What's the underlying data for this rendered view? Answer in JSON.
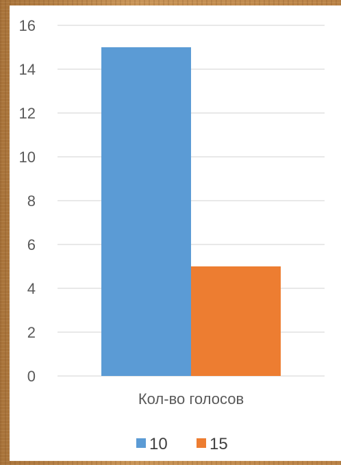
{
  "chart_data": {
    "type": "bar",
    "categories": [
      "Кол-во голосов"
    ],
    "series": [
      {
        "name": "10",
        "values": [
          15
        ],
        "color": "#5b9bd5"
      },
      {
        "name": "15",
        "values": [
          5
        ],
        "color": "#ed7d31"
      }
    ],
    "title": "",
    "xlabel": "",
    "ylabel": "",
    "ylim": [
      0,
      16
    ],
    "yticks": [
      "0",
      "2",
      "4",
      "6",
      "8",
      "10",
      "12",
      "14",
      "16"
    ],
    "grid": true,
    "legend_position": "bottom"
  }
}
